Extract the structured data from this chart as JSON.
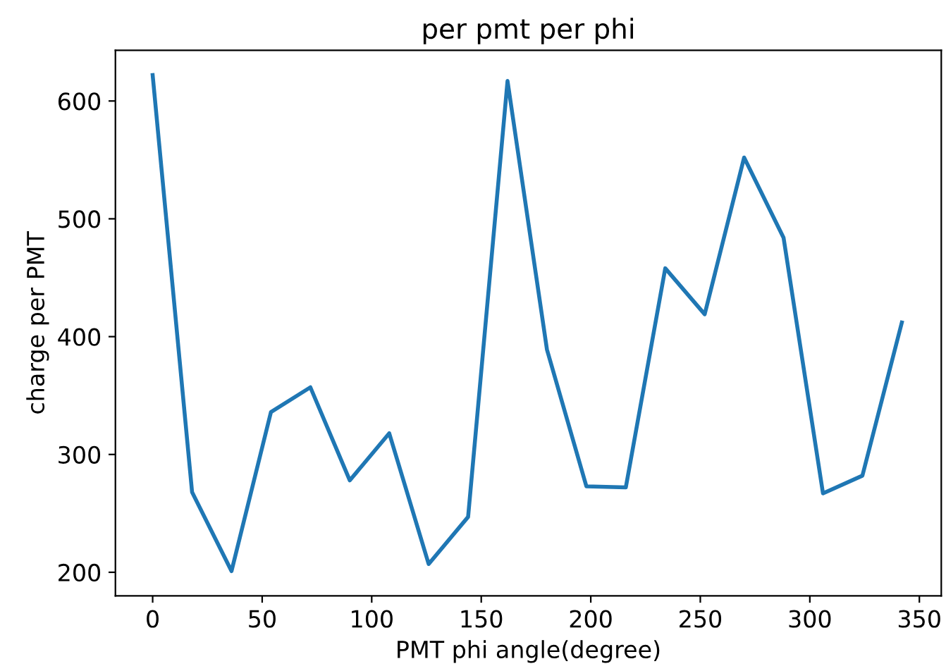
{
  "chart_data": {
    "type": "line",
    "title": "per pmt per phi",
    "xlabel": "PMT phi angle(degree)",
    "ylabel": "charge per PMT",
    "x": [
      0,
      18,
      36,
      54,
      72,
      90,
      108,
      126,
      144,
      162,
      180,
      198,
      216,
      234,
      252,
      270,
      288,
      306,
      324,
      342
    ],
    "series": [
      {
        "color": "#1f77b4",
        "values": [
          622,
          268,
          201,
          336,
          357,
          278,
          318,
          207,
          247,
          617,
          389,
          273,
          272,
          458,
          419,
          552,
          484,
          267,
          282,
          412
        ]
      }
    ],
    "xlim": [
      -17,
      360
    ],
    "ylim": [
      180,
      643
    ],
    "xticks": [
      0,
      50,
      100,
      150,
      200,
      250,
      300,
      350
    ],
    "yticks": [
      200,
      300,
      400,
      500,
      600
    ],
    "grid": false,
    "legend": false
  }
}
